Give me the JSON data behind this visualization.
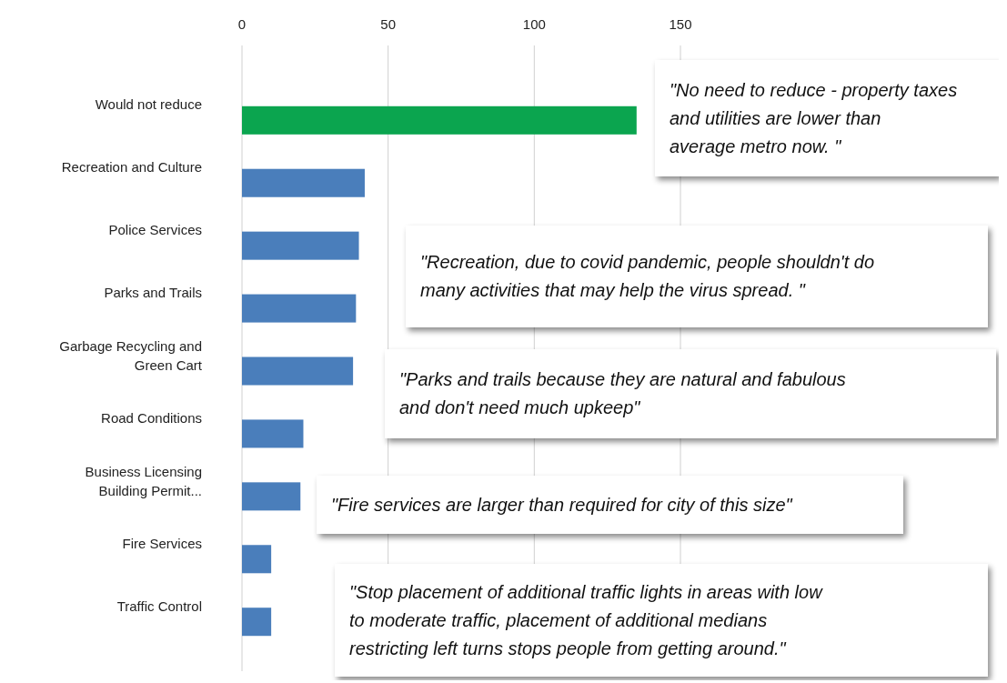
{
  "chart_data": {
    "type": "bar",
    "orientation": "horizontal",
    "categories": [
      "Would not reduce",
      "Recreation and Culture",
      "Police Services",
      "Parks and Trails",
      "Garbage Recycling and Green Cart",
      "Road Conditions",
      "Business Licensing Building Permit...",
      "Fire Services",
      "Traffic Control"
    ],
    "values": [
      135,
      42,
      40,
      39,
      38,
      21,
      20,
      10,
      10
    ],
    "colors": [
      "#0ba54f",
      "#4a7ebb",
      "#4a7ebb",
      "#4a7ebb",
      "#4a7ebb",
      "#4a7ebb",
      "#4a7ebb",
      "#4a7ebb",
      "#4a7ebb"
    ],
    "xlim": [
      0,
      150
    ],
    "xticks": [
      0,
      50,
      100,
      150
    ],
    "grid": "x",
    "annotations": [
      "\"No need to reduce - property taxes and utilities are lower than average metro now. \"",
      "\"Recreation, due to covid pandemic, people shouldn't do many activities that may help the virus spread. \"",
      "\"Parks and trails because they are natural and fabulous and don't need much upkeep\"",
      "\"Fire services are larger than required for city of this size\"",
      "\"Stop placement of additional traffic lights in areas with low to moderate traffic, placement of additional medians restricting left turns stops people from getting around.\""
    ]
  }
}
